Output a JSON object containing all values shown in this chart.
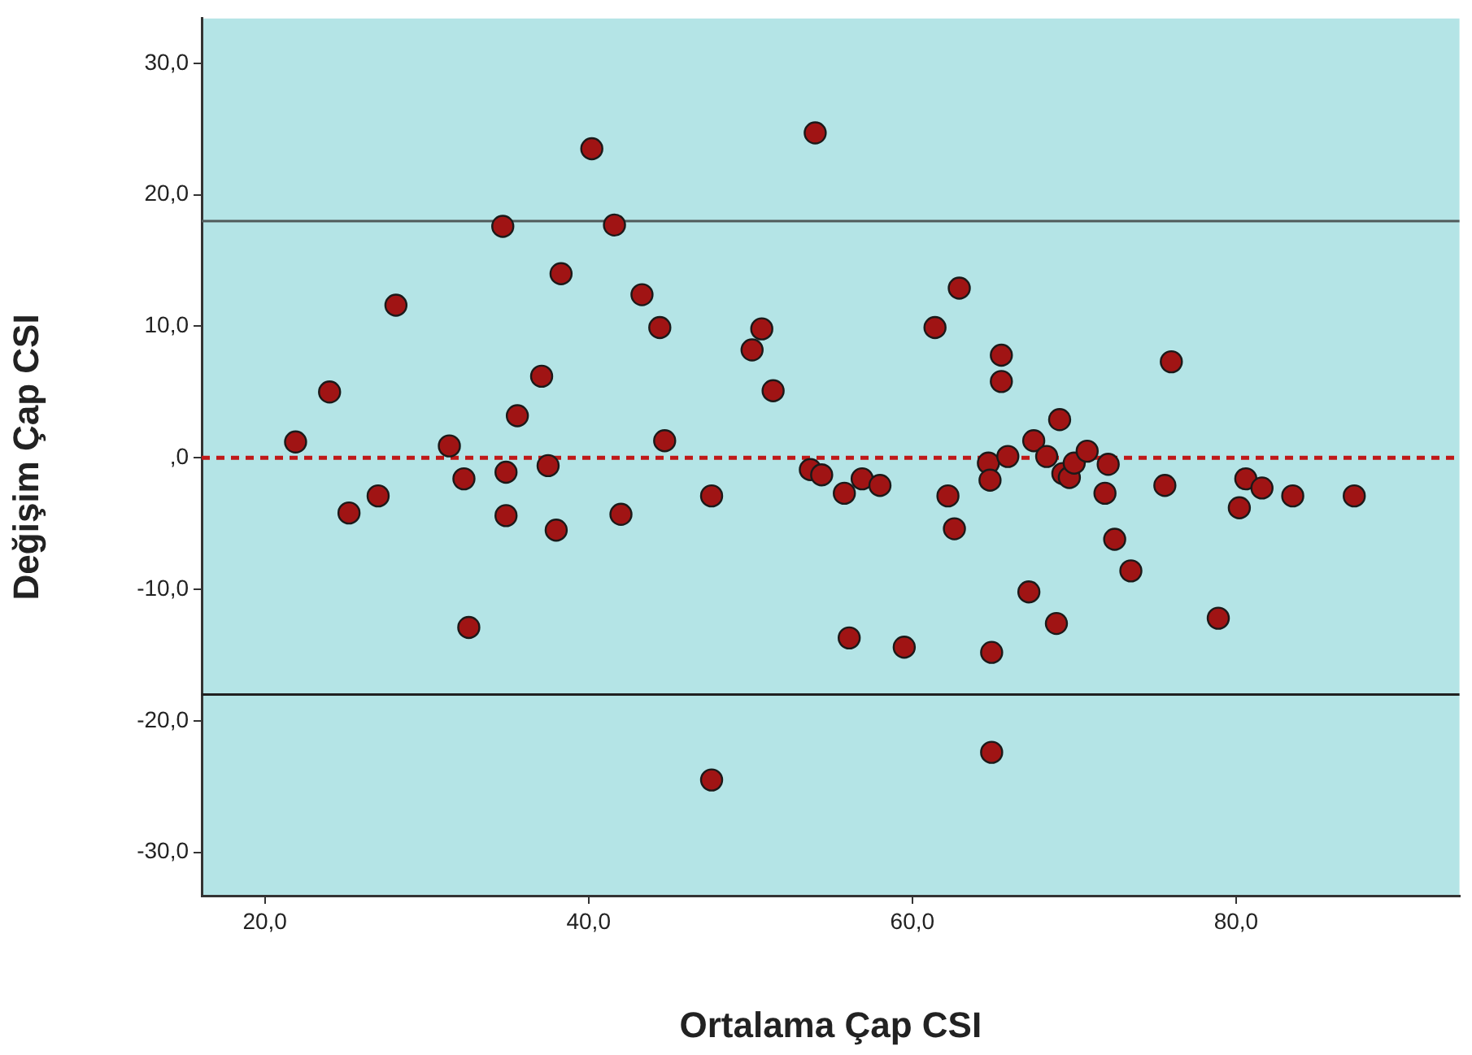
{
  "chart_data": {
    "type": "scatter",
    "xlabel": "Ortalama Çap CSI",
    "ylabel": "Değişim Çap CSI",
    "x": [
      21.9,
      24.0,
      25.2,
      27.0,
      28.1,
      31.4,
      32.3,
      32.6,
      34.7,
      34.9,
      34.9,
      35.6,
      37.1,
      37.5,
      38.0,
      38.3,
      40.2,
      41.6,
      42.0,
      43.3,
      44.4,
      44.7,
      47.6,
      47.6,
      50.1,
      50.7,
      51.4,
      54.0,
      53.7,
      54.4,
      55.8,
      56.1,
      56.9,
      58.0,
      59.5,
      61.4,
      62.2,
      62.6,
      62.9,
      64.7,
      64.8,
      64.9,
      64.9,
      65.5,
      65.5,
      65.9,
      67.2,
      67.5,
      68.3,
      68.9,
      69.1,
      69.3,
      69.7,
      70.0,
      70.8,
      71.9,
      72.1,
      72.5,
      73.5,
      75.6,
      76.0,
      78.9,
      80.2,
      80.6,
      81.6,
      83.5,
      87.3
    ],
    "series": [
      {
        "color": "#a01414",
        "values": [
          1.2,
          5.0,
          -4.2,
          -2.9,
          11.6,
          0.9,
          -1.6,
          -12.9,
          17.6,
          -1.1,
          -4.4,
          3.2,
          6.2,
          -0.6,
          -5.5,
          14.0,
          23.5,
          17.7,
          -4.3,
          12.4,
          9.9,
          1.3,
          -2.9,
          -24.5,
          8.2,
          9.8,
          5.1,
          24.7,
          -0.9,
          -1.3,
          -2.7,
          -13.7,
          -1.6,
          -2.1,
          -14.4,
          9.9,
          -2.9,
          -5.4,
          12.9,
          -0.4,
          -1.7,
          -14.8,
          -22.4,
          7.8,
          5.8,
          0.1,
          -10.2,
          1.3,
          0.1,
          -12.6,
          2.9,
          -1.2,
          -1.5,
          -0.4,
          0.5,
          -2.7,
          -0.5,
          -6.2,
          -8.6,
          -2.1,
          7.3,
          -12.2,
          -3.8,
          -1.6,
          -2.3,
          -2.9,
          -2.9
        ]
      }
    ],
    "xlim": [
      16.1,
      93.8
    ],
    "ylim": [
      -33.3,
      33.4
    ],
    "xticks": [
      {
        "value": 20,
        "label": "20,0"
      },
      {
        "value": 40,
        "label": "40,0"
      },
      {
        "value": 60,
        "label": "60,0"
      },
      {
        "value": 80,
        "label": "80,0"
      }
    ],
    "yticks": [
      {
        "value": -30,
        "label": "-30,0"
      },
      {
        "value": -20,
        "label": "-20,0"
      },
      {
        "value": -10,
        "label": "-10,0"
      },
      {
        "value": 0,
        "label": ",0"
      },
      {
        "value": 10,
        "label": "10,0"
      },
      {
        "value": 20,
        "label": "20,0"
      },
      {
        "value": 30,
        "label": "30,0"
      }
    ],
    "ref_lines": [
      {
        "axis": "y",
        "value": 18.0,
        "color": "#505a5a",
        "line_style": "solid"
      },
      {
        "axis": "y",
        "value": -18.0,
        "color": "#202020",
        "line_style": "solid"
      },
      {
        "axis": "y",
        "value": 0,
        "color": "#c01818",
        "line_style": "dashed"
      }
    ],
    "marker": "circle",
    "grid": false,
    "legend": false
  }
}
